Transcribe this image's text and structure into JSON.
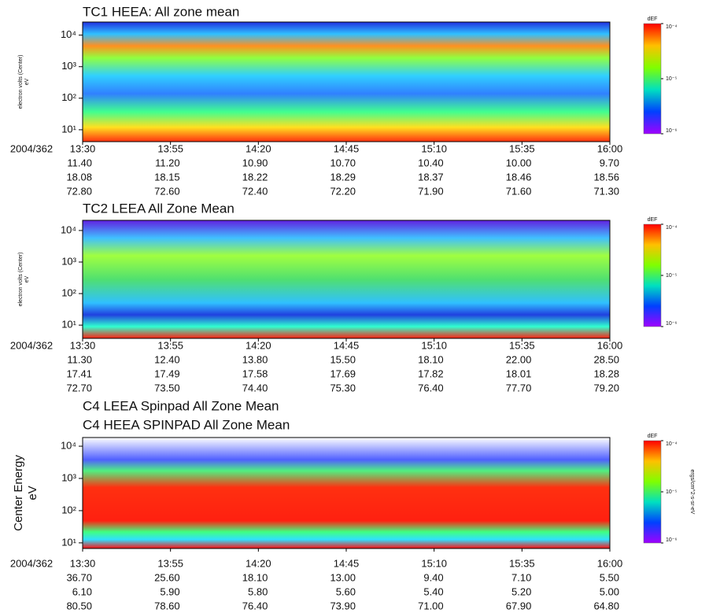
{
  "chart_data": [
    {
      "type": "spectrogram",
      "titles": [
        "TC1 HEEA: All zone mean"
      ],
      "ylabel": "electron volts (Center)",
      "yunit": "eV",
      "log_y": true,
      "ylim": [
        4.2,
        26000
      ],
      "yticks": [
        {
          "value": 10,
          "label": "10¹"
        },
        {
          "value": 100,
          "label": "10²"
        },
        {
          "value": 1000,
          "label": "10³"
        },
        {
          "value": 10000,
          "label": "10⁴"
        }
      ],
      "x_label": "2004/362",
      "categories": [
        "13:30",
        "13:55",
        "14:20",
        "14:45",
        "15:10",
        "15:35",
        "16:00"
      ],
      "x_rows": [
        [
          "11.40",
          "11.20",
          "10.90",
          "10.70",
          "10.40",
          "10.00",
          "9.70"
        ],
        [
          "18.08",
          "18.15",
          "18.22",
          "18.29",
          "18.37",
          "18.46",
          "18.56"
        ],
        [
          "72.80",
          "72.60",
          "72.40",
          "72.20",
          "71.90",
          "71.60",
          "71.30"
        ]
      ],
      "colorbar": {
        "label": "dEF",
        "lim": [
          1e-06,
          0.0001
        ],
        "ticks": [
          {
            "value": 0.0001,
            "label": "10⁻⁴"
          },
          {
            "value": 1e-05,
            "label": "10⁻⁵"
          },
          {
            "value": 1e-06,
            "label": "10⁻⁶"
          }
        ]
      }
    },
    {
      "type": "spectrogram",
      "titles": [
        "TC2 LEEA All Zone Mean"
      ],
      "ylabel": "electron volts (Center)",
      "yunit": "eV",
      "log_y": true,
      "ylim": [
        3.8,
        21000
      ],
      "yticks": [
        {
          "value": 10,
          "label": "10¹"
        },
        {
          "value": 100,
          "label": "10²"
        },
        {
          "value": 1000,
          "label": "10³"
        },
        {
          "value": 10000,
          "label": "10⁴"
        }
      ],
      "x_label": "2004/362",
      "categories": [
        "13:30",
        "13:55",
        "14:20",
        "14:45",
        "15:10",
        "15:35",
        "16:00"
      ],
      "x_rows": [
        [
          "11.30",
          "12.40",
          "13.80",
          "15.50",
          "18.10",
          "22.00",
          "28.50"
        ],
        [
          "17.41",
          "17.49",
          "17.58",
          "17.69",
          "17.82",
          "18.01",
          "18.28"
        ],
        [
          "72.70",
          "73.50",
          "74.40",
          "75.30",
          "76.40",
          "77.70",
          "79.20"
        ]
      ],
      "colorbar": {
        "label": "dEF",
        "lim": [
          1e-06,
          0.0001
        ],
        "ticks": [
          {
            "value": 0.0001,
            "label": "10⁻⁴"
          },
          {
            "value": 1e-05,
            "label": "10⁻⁵"
          },
          {
            "value": 1e-06,
            "label": "10⁻⁶"
          }
        ]
      }
    },
    {
      "type": "spectrogram",
      "titles": [
        "C4 LEEA Spinpad All Zone Mean",
        "C4 HEEA SPINPAD All Zone Mean"
      ],
      "ylabel": "Center Energy",
      "yunit": "eV",
      "log_y": true,
      "ylim": [
        6.7,
        18600
      ],
      "yticks": [
        {
          "value": 10,
          "label": "10¹"
        },
        {
          "value": 100,
          "label": "10²"
        },
        {
          "value": 1000,
          "label": "10³"
        },
        {
          "value": 10000,
          "label": "10⁴"
        }
      ],
      "x_label": "2004/362",
      "categories": [
        "13:30",
        "13:55",
        "14:20",
        "14:45",
        "15:10",
        "15:35",
        "16:00"
      ],
      "x_rows": [
        [
          "36.70",
          "25.60",
          "18.10",
          "13.00",
          "9.40",
          "7.10",
          "5.50"
        ],
        [
          "6.10",
          "5.90",
          "5.80",
          "5.60",
          "5.40",
          "5.20",
          "5.00"
        ],
        [
          "80.50",
          "78.60",
          "76.40",
          "73.90",
          "71.00",
          "67.90",
          "64.80"
        ]
      ],
      "colorbar": {
        "label": "dEF",
        "unit": "ergs/cm^2-s-sr-eV",
        "lim": [
          1e-06,
          0.0001
        ],
        "ticks": [
          {
            "value": 0.0001,
            "label": "10⁻⁴"
          },
          {
            "value": 1e-05,
            "label": "10⁻⁵"
          },
          {
            "value": 1e-06,
            "label": "10⁻⁶"
          }
        ]
      }
    }
  ]
}
